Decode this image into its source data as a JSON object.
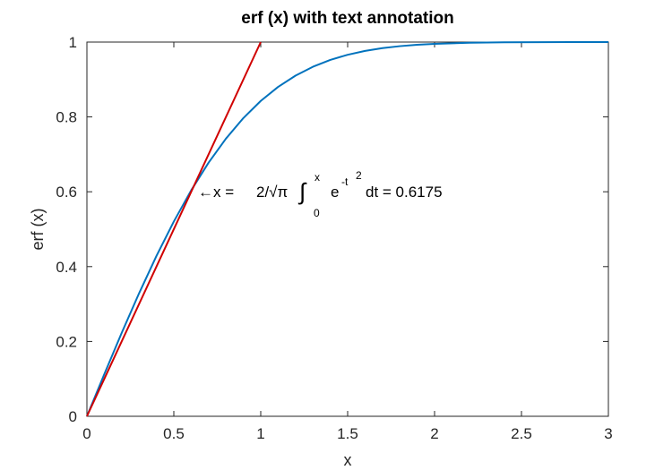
{
  "chart_data": {
    "type": "line",
    "title": "erf (x) with text annotation",
    "xlabel": "x",
    "ylabel": "erf (x)",
    "xlim": [
      0,
      3
    ],
    "ylim": [
      0,
      1
    ],
    "xticks": [
      0,
      0.5,
      1,
      1.5,
      2,
      2.5,
      3
    ],
    "xtick_labels": [
      "0",
      "0.5",
      "1",
      "1.5",
      "2",
      "2.5",
      "3"
    ],
    "yticks": [
      0,
      0.2,
      0.4,
      0.6,
      0.8,
      1
    ],
    "ytick_labels": [
      "0",
      "0.2",
      "0.4",
      "0.6",
      "0.8",
      "1"
    ],
    "grid": false,
    "series": [
      {
        "color": "#0072bd",
        "x": [
          0,
          0.1,
          0.2,
          0.3,
          0.4,
          0.5,
          0.6,
          0.7,
          0.8,
          0.9,
          1.0,
          1.1,
          1.2,
          1.3,
          1.4,
          1.5,
          1.6,
          1.7,
          1.8,
          1.9,
          2.0,
          2.2,
          2.4,
          2.6,
          2.8,
          3.0
        ],
        "y": [
          0,
          0.1125,
          0.2227,
          0.3286,
          0.4284,
          0.5205,
          0.6039,
          0.6778,
          0.7421,
          0.7969,
          0.8427,
          0.8802,
          0.9103,
          0.934,
          0.9523,
          0.9661,
          0.9763,
          0.9838,
          0.9891,
          0.9928,
          0.9953,
          0.9981,
          0.9993,
          0.9998,
          0.9999,
          1.0
        ]
      },
      {
        "color": "#d00000",
        "x": [
          0,
          1.0
        ],
        "y": [
          0,
          1.0
        ]
      }
    ],
    "annotation": {
      "x": 0.6175,
      "y": 0.6175,
      "parts": {
        "arrow_text": "←x =",
        "expr_main": "2/√π",
        "integral": "∫",
        "upper_limit": "x",
        "lower_limit": "0",
        "base": "e",
        "exponent": "-t",
        "exponent_power": "2",
        "rest": "dt  = 0.6175"
      }
    }
  }
}
